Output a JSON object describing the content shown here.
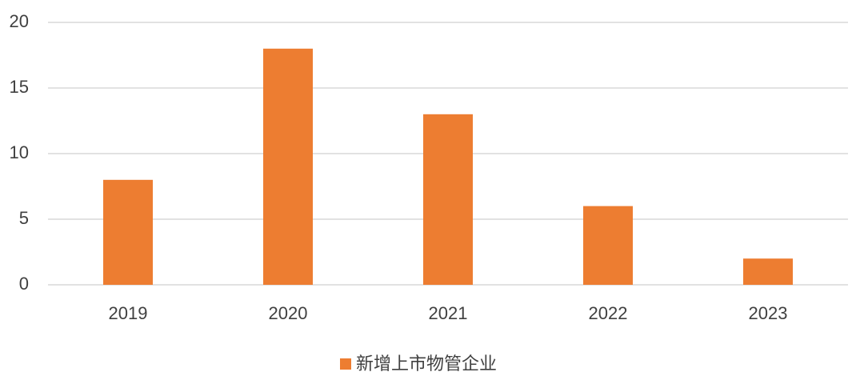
{
  "chart_data": {
    "type": "bar",
    "categories": [
      "2019",
      "2020",
      "2021",
      "2022",
      "2023"
    ],
    "series": [
      {
        "name": "新增上市物管企业",
        "color": "#ED7D31",
        "values": [
          8,
          18,
          13,
          6,
          2
        ]
      }
    ],
    "ylim": [
      0,
      20
    ],
    "yticks": [
      0,
      5,
      10,
      15,
      20
    ],
    "grid": true,
    "legend": "bottom"
  }
}
